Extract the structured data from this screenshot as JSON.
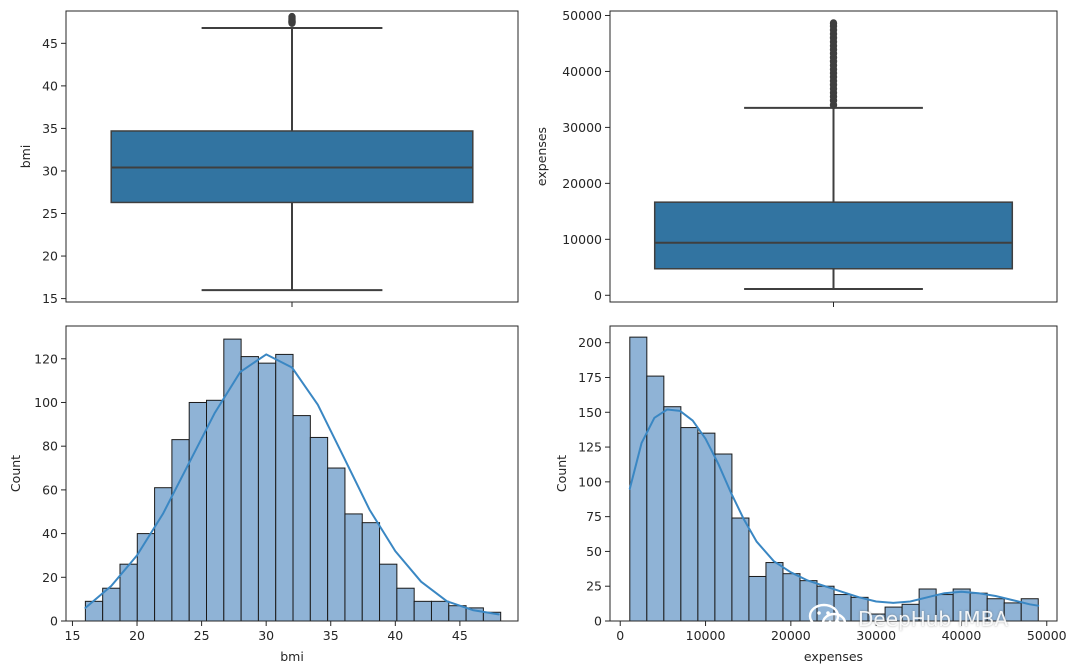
{
  "watermark": {
    "text": "DeepHub IMBA",
    "icon": "wechat-icon"
  },
  "colors": {
    "box": "#3274a1",
    "hist_fill": "#8fb3d6",
    "kde": "#3a87c3",
    "edge": "#3f3f3f"
  },
  "chart_data": [
    {
      "id": "bmi-box",
      "type": "box",
      "title": "",
      "xlabel": "",
      "ylabel": "bmi",
      "ylim": [
        14.6,
        48.8
      ],
      "yticks": [
        15,
        20,
        25,
        30,
        35,
        40,
        45
      ],
      "stats": {
        "whisker_low": 16.0,
        "q1": 26.3,
        "median": 30.4,
        "q3": 34.7,
        "whisker_high": 46.8
      },
      "outliers": [
        47.4,
        47.5,
        47.6,
        47.7,
        47.9,
        48.1
      ]
    },
    {
      "id": "expenses-box",
      "type": "box",
      "title": "",
      "xlabel": "",
      "ylabel": "expenses",
      "ylim": [
        -1200,
        50800
      ],
      "yticks": [
        0,
        10000,
        20000,
        30000,
        40000,
        50000
      ],
      "stats": {
        "whisker_low": 1122,
        "q1": 4740,
        "median": 9382,
        "q3": 16640,
        "whisker_high": 33500
      },
      "outliers": [
        34000,
        34800,
        35500,
        36200,
        36900,
        37600,
        38300,
        39000,
        39700,
        40400,
        41100,
        41800,
        42500,
        43200,
        43900,
        44600,
        45300,
        46000,
        46700,
        47400,
        48100,
        48600
      ]
    },
    {
      "id": "bmi-hist",
      "type": "histogram",
      "title": "",
      "xlabel": "bmi",
      "ylabel": "Count",
      "xlim": [
        14.5,
        49.5
      ],
      "ylim": [
        0,
        135
      ],
      "xticks": [
        15,
        20,
        25,
        30,
        35,
        40,
        45
      ],
      "yticks": [
        0,
        20,
        40,
        60,
        80,
        100,
        120
      ],
      "bin_edges": [
        16.0,
        17.34,
        18.68,
        20.02,
        21.36,
        22.7,
        24.04,
        25.38,
        26.72,
        28.06,
        29.4,
        30.74,
        32.08,
        33.42,
        34.76,
        36.1,
        37.44,
        38.78,
        40.12,
        41.46,
        42.8,
        44.14,
        45.48,
        46.82,
        48.16
      ],
      "counts": [
        9,
        15,
        26,
        40,
        61,
        83,
        100,
        101,
        129,
        121,
        118,
        122,
        94,
        84,
        70,
        49,
        45,
        26,
        15,
        9,
        9,
        7,
        6,
        4
      ],
      "kde": {
        "x": [
          16,
          18,
          20,
          22,
          24,
          26,
          28,
          30,
          32,
          34,
          36,
          38,
          40,
          42,
          44,
          46,
          48
        ],
        "y": [
          6,
          16,
          30,
          49,
          72,
          95,
          114,
          122,
          116,
          99,
          75,
          51,
          32,
          18,
          9,
          5,
          3
        ]
      }
    },
    {
      "id": "expenses-hist",
      "type": "histogram",
      "title": "",
      "xlabel": "expenses",
      "ylabel": "Count",
      "xlim": [
        -1200,
        51200
      ],
      "ylim": [
        0,
        212
      ],
      "xticks": [
        0,
        10000,
        20000,
        30000,
        40000,
        50000
      ],
      "yticks": [
        0,
        25,
        50,
        75,
        100,
        125,
        150,
        175,
        200
      ],
      "bin_edges": [
        1122,
        3117,
        5112,
        7107,
        9102,
        11097,
        13092,
        15087,
        17082,
        19077,
        21072,
        23067,
        25062,
        27057,
        29052,
        31047,
        33042,
        35037,
        37032,
        39027,
        41022,
        43017,
        45012,
        47007,
        49002
      ],
      "counts": [
        204,
        176,
        154,
        139,
        135,
        120,
        74,
        32,
        42,
        34,
        29,
        25,
        19,
        17,
        5,
        10,
        12,
        23,
        19,
        23,
        20,
        16,
        13,
        16
      ],
      "kde": {
        "x": [
          1122,
          2500,
          4000,
          5500,
          7000,
          8500,
          10000,
          11500,
          13000,
          14500,
          16000,
          18000,
          20000,
          22000,
          24000,
          26000,
          28000,
          30000,
          32000,
          34000,
          36000,
          38000,
          40000,
          42000,
          44000,
          46000,
          48000,
          49002
        ],
        "y": [
          95,
          128,
          146,
          152,
          151,
          144,
          131,
          113,
          92,
          73,
          57,
          43,
          35,
          29,
          25,
          21,
          17,
          14,
          13,
          14,
          17,
          20,
          21,
          20,
          18,
          15,
          12,
          11
        ]
      }
    }
  ]
}
